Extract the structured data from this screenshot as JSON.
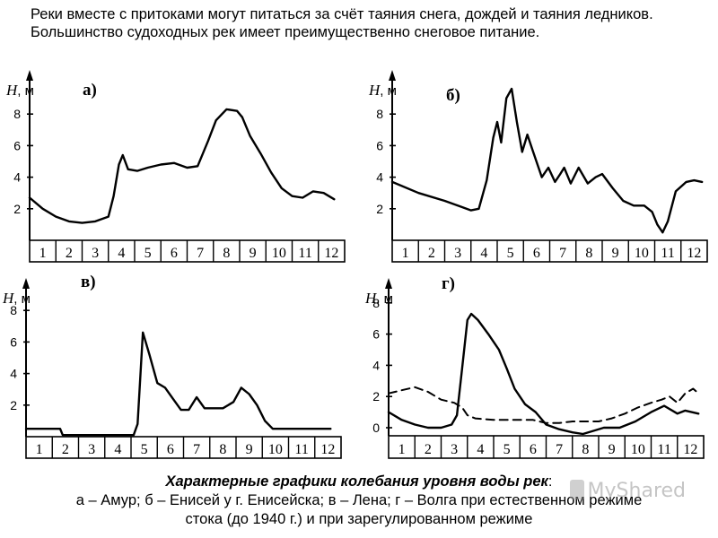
{
  "intro_text": "Реки вместе с притоками могут питаться за счёт таяния снега, дождей и таяния ледников. Большинство судоходных рек имеет преимущественно снеговое питание.",
  "caption": {
    "title": "Характерные графики колебания уровня воды рек",
    "line1": "а – Амур; б – Енисей у г. Енисейска; в – Лена; г – Волга при естественном режиме",
    "line2": "стока (до 1940 г.) и при зарегулированном режиме"
  },
  "watermark": "MyShared",
  "chart_data": [
    {
      "type": "line",
      "label": "а)",
      "y_axis_label": "H, м",
      "x_ticks": [
        "1",
        "2",
        "3",
        "4",
        "5",
        "6",
        "7",
        "8",
        "9",
        "10",
        "11",
        "12"
      ],
      "y_ticks": [
        2,
        4,
        6,
        8
      ],
      "ylim": [
        0,
        9.5
      ],
      "xlim": [
        1,
        13
      ],
      "series": [
        {
          "style": "solid",
          "points": [
            [
              1.0,
              2.7
            ],
            [
              1.5,
              2.0
            ],
            [
              2.0,
              1.5
            ],
            [
              2.5,
              1.2
            ],
            [
              3.0,
              1.1
            ],
            [
              3.5,
              1.2
            ],
            [
              4.0,
              1.5
            ],
            [
              4.2,
              2.8
            ],
            [
              4.4,
              4.8
            ],
            [
              4.55,
              5.4
            ],
            [
              4.75,
              4.5
            ],
            [
              5.1,
              4.4
            ],
            [
              5.5,
              4.6
            ],
            [
              6.0,
              4.8
            ],
            [
              6.5,
              4.9
            ],
            [
              7.0,
              4.6
            ],
            [
              7.4,
              4.7
            ],
            [
              7.8,
              6.3
            ],
            [
              8.1,
              7.6
            ],
            [
              8.5,
              8.3
            ],
            [
              8.9,
              8.2
            ],
            [
              9.1,
              7.8
            ],
            [
              9.4,
              6.6
            ],
            [
              9.8,
              5.5
            ],
            [
              10.2,
              4.3
            ],
            [
              10.6,
              3.3
            ],
            [
              11.0,
              2.8
            ],
            [
              11.4,
              2.7
            ],
            [
              11.8,
              3.1
            ],
            [
              12.2,
              3.0
            ],
            [
              12.6,
              2.6
            ]
          ]
        }
      ]
    },
    {
      "type": "line",
      "label": "б)",
      "y_axis_label": "H, м",
      "x_ticks": [
        "1",
        "2",
        "3",
        "4",
        "5",
        "6",
        "7",
        "8",
        "9",
        "10",
        "11",
        "12"
      ],
      "y_ticks": [
        2,
        4,
        6,
        8
      ],
      "ylim": [
        0,
        9.5
      ],
      "xlim": [
        1,
        13
      ],
      "series": [
        {
          "style": "solid",
          "points": [
            [
              1.0,
              3.7
            ],
            [
              2.0,
              3.0
            ],
            [
              3.0,
              2.5
            ],
            [
              3.5,
              2.2
            ],
            [
              4.0,
              1.9
            ],
            [
              4.3,
              2.0
            ],
            [
              4.6,
              3.8
            ],
            [
              4.85,
              6.5
            ],
            [
              5.0,
              7.5
            ],
            [
              5.15,
              6.2
            ],
            [
              5.35,
              9.0
            ],
            [
              5.55,
              9.6
            ],
            [
              5.75,
              7.5
            ],
            [
              5.95,
              5.6
            ],
            [
              6.15,
              6.7
            ],
            [
              6.35,
              5.7
            ],
            [
              6.7,
              4.0
            ],
            [
              6.95,
              4.6
            ],
            [
              7.2,
              3.7
            ],
            [
              7.4,
              4.2
            ],
            [
              7.55,
              4.6
            ],
            [
              7.8,
              3.6
            ],
            [
              8.1,
              4.6
            ],
            [
              8.45,
              3.6
            ],
            [
              8.75,
              4.0
            ],
            [
              9.0,
              4.2
            ],
            [
              9.4,
              3.3
            ],
            [
              9.8,
              2.5
            ],
            [
              10.2,
              2.2
            ],
            [
              10.6,
              2.2
            ],
            [
              10.9,
              1.8
            ],
            [
              11.1,
              1.0
            ],
            [
              11.3,
              0.5
            ],
            [
              11.5,
              1.2
            ],
            [
              11.8,
              3.1
            ],
            [
              12.2,
              3.7
            ],
            [
              12.5,
              3.8
            ],
            [
              12.8,
              3.7
            ]
          ]
        }
      ]
    },
    {
      "type": "line",
      "label": "в)",
      "y_axis_label": "H, м",
      "x_ticks": [
        "1",
        "2",
        "3",
        "4",
        "5",
        "6",
        "7",
        "8",
        "9",
        "10",
        "11",
        "12"
      ],
      "y_ticks": [
        2,
        4,
        6,
        8
      ],
      "ylim": [
        0,
        9.5
      ],
      "xlim": [
        1,
        13
      ],
      "series": [
        {
          "style": "solid",
          "points": [
            [
              1.0,
              0.5
            ],
            [
              2.3,
              0.5
            ],
            [
              2.4,
              0.1
            ],
            [
              5.1,
              0.1
            ],
            [
              5.25,
              0.8
            ],
            [
              5.45,
              6.6
            ],
            [
              5.7,
              5.2
            ],
            [
              6.0,
              3.4
            ],
            [
              6.3,
              3.1
            ],
            [
              6.6,
              2.4
            ],
            [
              6.9,
              1.7
            ],
            [
              7.2,
              1.7
            ],
            [
              7.5,
              2.5
            ],
            [
              7.8,
              1.8
            ],
            [
              8.5,
              1.8
            ],
            [
              8.9,
              2.2
            ],
            [
              9.2,
              3.1
            ],
            [
              9.5,
              2.7
            ],
            [
              9.8,
              2.0
            ],
            [
              10.1,
              1.0
            ],
            [
              10.4,
              0.5
            ],
            [
              12.6,
              0.5
            ]
          ]
        }
      ]
    },
    {
      "type": "line",
      "label": "г)",
      "y_axis_label": "H, м",
      "x_ticks": [
        "1",
        "2",
        "3",
        "4",
        "5",
        "6",
        "7",
        "8",
        "9",
        "10",
        "11",
        "12"
      ],
      "y_ticks": [
        0,
        2,
        4,
        6,
        8
      ],
      "ylim": [
        -1,
        9
      ],
      "xlim": [
        1,
        13
      ],
      "series": [
        {
          "style": "solid",
          "points": [
            [
              1.0,
              1.0
            ],
            [
              1.5,
              0.5
            ],
            [
              2.0,
              0.2
            ],
            [
              2.5,
              0.0
            ],
            [
              3.0,
              0.0
            ],
            [
              3.4,
              0.2
            ],
            [
              3.6,
              0.8
            ],
            [
              3.8,
              3.8
            ],
            [
              4.0,
              6.9
            ],
            [
              4.15,
              7.3
            ],
            [
              4.4,
              6.9
            ],
            [
              4.8,
              6.0
            ],
            [
              5.2,
              5.0
            ],
            [
              5.5,
              3.8
            ],
            [
              5.8,
              2.5
            ],
            [
              6.2,
              1.5
            ],
            [
              6.6,
              1.0
            ],
            [
              7.0,
              0.2
            ],
            [
              7.5,
              -0.1
            ],
            [
              8.0,
              -0.3
            ],
            [
              8.4,
              -0.4
            ],
            [
              8.8,
              -0.2
            ],
            [
              9.2,
              0.0
            ],
            [
              9.8,
              0.0
            ],
            [
              10.4,
              0.4
            ],
            [
              11.0,
              1.0
            ],
            [
              11.5,
              1.4
            ],
            [
              12.0,
              0.9
            ],
            [
              12.3,
              1.1
            ],
            [
              12.8,
              0.9
            ]
          ]
        },
        {
          "style": "dashed",
          "points": [
            [
              1.0,
              2.2
            ],
            [
              1.5,
              2.4
            ],
            [
              2.0,
              2.6
            ],
            [
              2.5,
              2.3
            ],
            [
              3.0,
              1.8
            ],
            [
              3.5,
              1.6
            ],
            [
              3.8,
              1.3
            ],
            [
              4.0,
              0.8
            ],
            [
              4.3,
              0.6
            ],
            [
              5.0,
              0.5
            ],
            [
              6.0,
              0.5
            ],
            [
              6.5,
              0.5
            ],
            [
              7.0,
              0.3
            ],
            [
              7.5,
              0.3
            ],
            [
              8.0,
              0.4
            ],
            [
              9.0,
              0.4
            ],
            [
              9.5,
              0.6
            ],
            [
              10.0,
              0.9
            ],
            [
              10.5,
              1.3
            ],
            [
              11.0,
              1.6
            ],
            [
              11.4,
              1.8
            ],
            [
              11.7,
              2.0
            ],
            [
              12.0,
              1.6
            ],
            [
              12.3,
              2.2
            ],
            [
              12.6,
              2.5
            ],
            [
              12.8,
              2.2
            ]
          ]
        }
      ]
    }
  ]
}
